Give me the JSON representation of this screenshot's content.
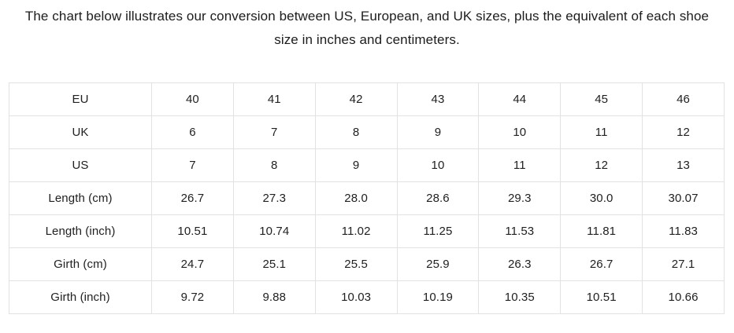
{
  "intro": {
    "text": "The chart below illustrates our conversion between US, European, and UK sizes, plus the equivalent of each shoe size in inches and centimeters."
  },
  "colors": {
    "border": "#e2e2e2",
    "text": "#212123",
    "intro_text": "#1c1c1e",
    "background": "#ffffff"
  },
  "chart_data": {
    "type": "table",
    "title": "The chart below illustrates our conversion between US, European, and UK sizes, plus the equivalent of each shoe size in inches and centimeters.",
    "row_headers": [
      "EU",
      "UK",
      "US",
      "Length (cm)",
      "Length (inch)",
      "Girth (cm)",
      "Girth (inch)"
    ],
    "rows": [
      [
        "40",
        "41",
        "42",
        "43",
        "44",
        "45",
        "46"
      ],
      [
        "6",
        "7",
        "8",
        "9",
        "10",
        "11",
        "12"
      ],
      [
        "7",
        "8",
        "9",
        "10",
        "11",
        "12",
        "13"
      ],
      [
        "26.7",
        "27.3",
        "28.0",
        "28.6",
        "29.3",
        "30.0",
        "30.07"
      ],
      [
        "10.51",
        "10.74",
        "11.02",
        "11.25",
        "11.53",
        "11.81",
        "11.83"
      ],
      [
        "24.7",
        "25.1",
        "25.5",
        "25.9",
        "26.3",
        "26.7",
        "27.1"
      ],
      [
        "9.72",
        "9.88",
        "10.03",
        "10.19",
        "10.35",
        "10.51",
        "10.66"
      ]
    ],
    "layout": {
      "grid": true,
      "header_column": "left",
      "cell_alignment": "center"
    }
  }
}
